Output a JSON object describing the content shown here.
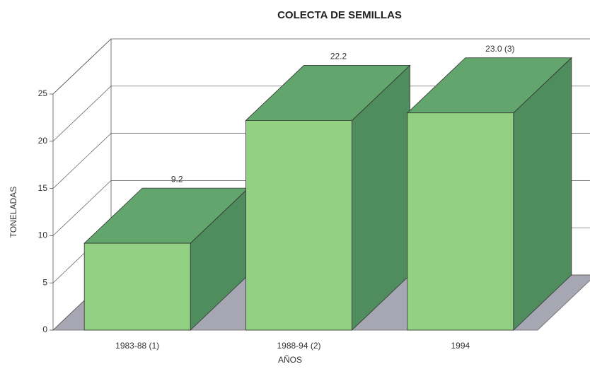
{
  "chart_data": {
    "type": "bar3d",
    "title": "COLECTA DE SEMILLAS",
    "x_label": "AÑOS",
    "y_label": "TONELADAS",
    "categories": [
      "1983-88 (1)",
      "1988-94 (2)",
      "1994"
    ],
    "values": [
      9.2,
      22.2,
      23.0
    ],
    "value_labels": [
      "9.2",
      "22.2",
      "23.0 (3)"
    ],
    "color": "#92d084",
    "ylim": [
      0,
      25
    ],
    "yticks": [
      0,
      5,
      10,
      15,
      20,
      25
    ],
    "grid": true
  }
}
